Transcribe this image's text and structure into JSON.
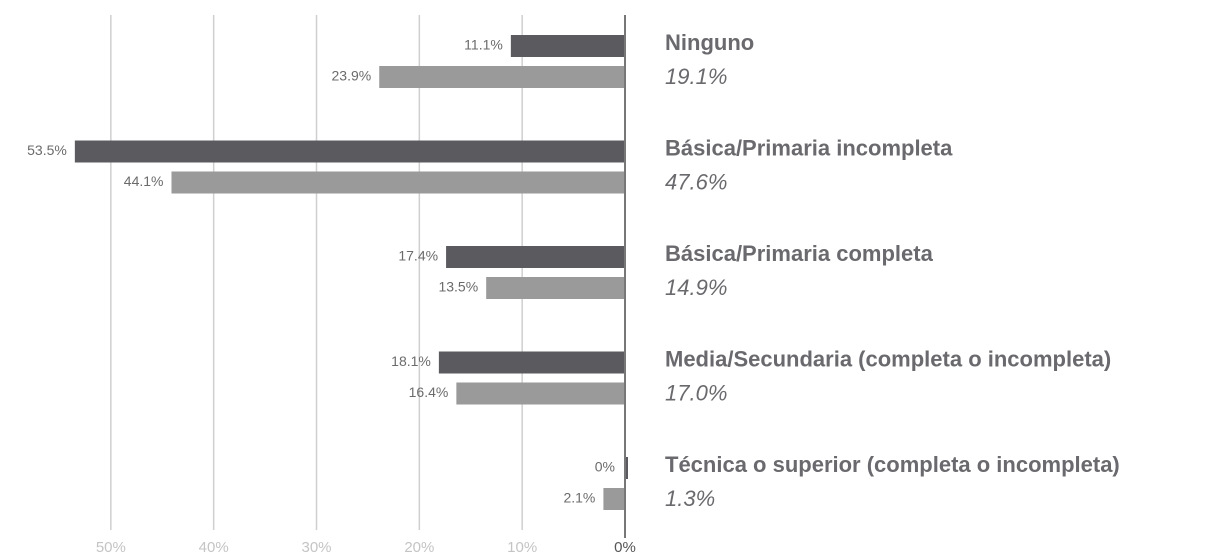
{
  "chart_data": {
    "type": "bar",
    "orientation": "horizontal",
    "categories": [
      "Ninguno",
      "Básica/Primaria incompleta",
      "Básica/Primaria completa",
      "Media/Secundaria (completa o incompleta)",
      "Técnica o superior (completa o incompleta)"
    ],
    "totals": [
      19.1,
      47.6,
      14.9,
      17.0,
      1.3
    ],
    "total_labels": [
      "19.1%",
      "47.6%",
      "14.9%",
      "17.0%",
      "1.3%"
    ],
    "series": [
      {
        "color": "#5b5b5f",
        "values": [
          11.1,
          53.5,
          17.4,
          18.1,
          0
        ],
        "value_labels": [
          "11.1%",
          "53.5%",
          "17.4%",
          "18.1%",
          "0%"
        ]
      },
      {
        "color": "#9a9a9a",
        "values": [
          23.9,
          44.1,
          13.5,
          16.4,
          2.1
        ],
        "value_labels": [
          "23.9%",
          "44.1%",
          "13.5%",
          "16.4%",
          "2.1%"
        ]
      }
    ],
    "xlim": [
      0,
      60
    ],
    "xticks": [
      {
        "value": 50,
        "label": "50%"
      },
      {
        "value": 40,
        "label": "40%"
      },
      {
        "value": 30,
        "label": "30%"
      },
      {
        "value": 20,
        "label": "20%"
      },
      {
        "value": 10,
        "label": "10%"
      },
      {
        "value": 0,
        "label": "0%"
      }
    ],
    "grid": true
  }
}
